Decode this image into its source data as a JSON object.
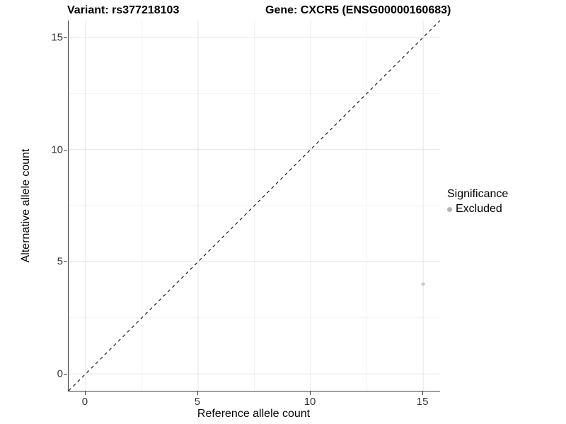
{
  "header": {
    "variant_label": "Variant: rs377218103",
    "gene_label": "Gene: CXCR5 (ENSG00000160683)"
  },
  "chart_data": {
    "type": "scatter",
    "xlabel": "Reference allele count",
    "ylabel": "Alternative allele count",
    "xlim": [
      -0.75,
      15.75
    ],
    "ylim": [
      -0.75,
      15.75
    ],
    "x_ticks": [
      0,
      5,
      10,
      15
    ],
    "y_ticks": [
      0,
      5,
      10,
      15
    ],
    "x_minor_ticks": [
      2.5,
      7.5,
      12.5
    ],
    "y_minor_ticks": [
      2.5,
      7.5,
      12.5
    ],
    "grid": true,
    "points": [
      {
        "x": 15,
        "y": 4,
        "series": "Excluded",
        "color": "#c9c9c9",
        "radius": 2.5
      }
    ],
    "reference_line": {
      "name": "identity-line",
      "style": "dashed",
      "color": "#1a1a1a",
      "from": [
        -0.75,
        -0.75
      ],
      "to": [
        15.75,
        15.75
      ]
    },
    "legend": {
      "title": "Significance",
      "position": "right",
      "items": [
        {
          "label": "Excluded",
          "color": "#b5b5b5"
        }
      ]
    },
    "colors": {
      "grid_major": "#e6e6e6",
      "grid_minor": "#f2f2f2",
      "axis_line": "#3c3c3c",
      "tick_text": "#333333"
    }
  }
}
